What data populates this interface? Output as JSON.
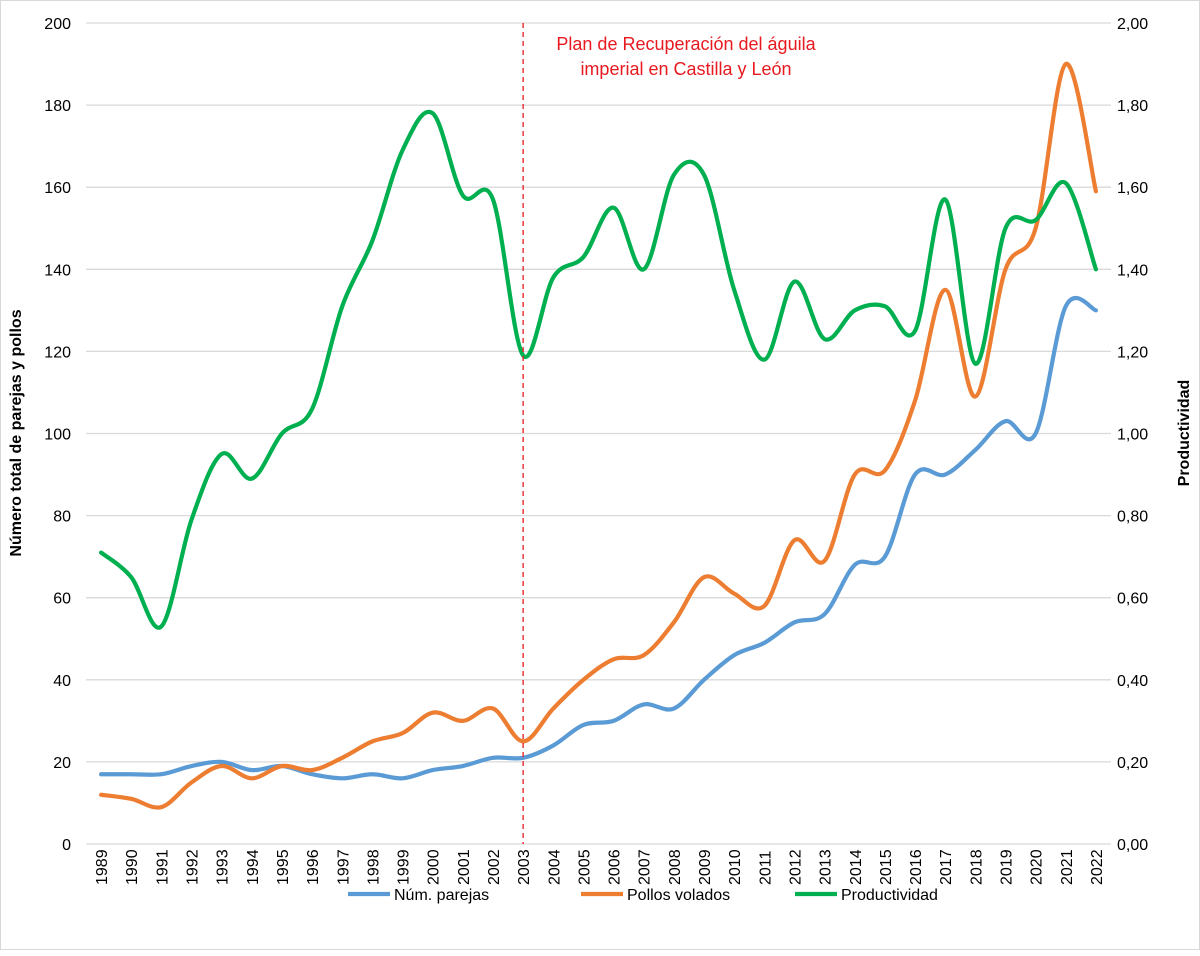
{
  "chart_data": {
    "type": "line",
    "title": "",
    "annotation": [
      "Plan de Recuperación del águila",
      "imperial en Castilla y León"
    ],
    "annotation_year": "2003",
    "annotation_color": "#e8191f",
    "ylabel": "Número total de parejas y pollos",
    "y2label": "Productividad",
    "ylim": [
      0,
      200
    ],
    "y2lim": [
      0,
      2
    ],
    "yticks": [
      "0",
      "20",
      "40",
      "60",
      "80",
      "100",
      "120",
      "140",
      "160",
      "180",
      "200"
    ],
    "y2ticks": [
      "0,00",
      "0,20",
      "0,40",
      "0,60",
      "0,80",
      "1,00",
      "1,20",
      "1,40",
      "1,60",
      "1,80",
      "2,00"
    ],
    "categories": [
      "1989",
      "1990",
      "1991",
      "1992",
      "1993",
      "1994",
      "1995",
      "1996",
      "1997",
      "1998",
      "1999",
      "2000",
      "2001",
      "2002",
      "2003",
      "2004",
      "2005",
      "2006",
      "2007",
      "2008",
      "2009",
      "2010",
      "2011",
      "2012",
      "2013",
      "2014",
      "2015",
      "2016",
      "2017",
      "2018",
      "2019",
      "2020",
      "2021",
      "2022"
    ],
    "grid": true,
    "legend_position": "bottom",
    "series": [
      {
        "name": "Núm. parejas",
        "axis": "left",
        "color": "#5b9bd5",
        "values": [
          17,
          17,
          17,
          19,
          20,
          18,
          19,
          17,
          16,
          17,
          16,
          18,
          19,
          21,
          21,
          24,
          29,
          30,
          34,
          33,
          40,
          46,
          49,
          54,
          56,
          68,
          70,
          90,
          90,
          96,
          103,
          100,
          131,
          130
        ]
      },
      {
        "name": "Pollos volados",
        "axis": "left",
        "color": "#ed7d31",
        "values": [
          12,
          11,
          9,
          15,
          19,
          16,
          19,
          18,
          21,
          25,
          27,
          32,
          30,
          33,
          25,
          33,
          40,
          45,
          46,
          54,
          65,
          61,
          58,
          74,
          69,
          90,
          91,
          108,
          135,
          109,
          140,
          150,
          190,
          159
        ]
      },
      {
        "name": "Productividad",
        "axis": "right",
        "color": "#00b050",
        "values": [
          0.71,
          0.65,
          0.53,
          0.79,
          0.95,
          0.89,
          1.0,
          1.06,
          1.31,
          1.47,
          1.69,
          1.78,
          1.58,
          1.57,
          1.19,
          1.38,
          1.43,
          1.55,
          1.4,
          1.63,
          1.63,
          1.35,
          1.18,
          1.37,
          1.23,
          1.3,
          1.31,
          1.25,
          1.57,
          1.17,
          1.5,
          1.52,
          1.61,
          1.4
        ]
      }
    ]
  }
}
